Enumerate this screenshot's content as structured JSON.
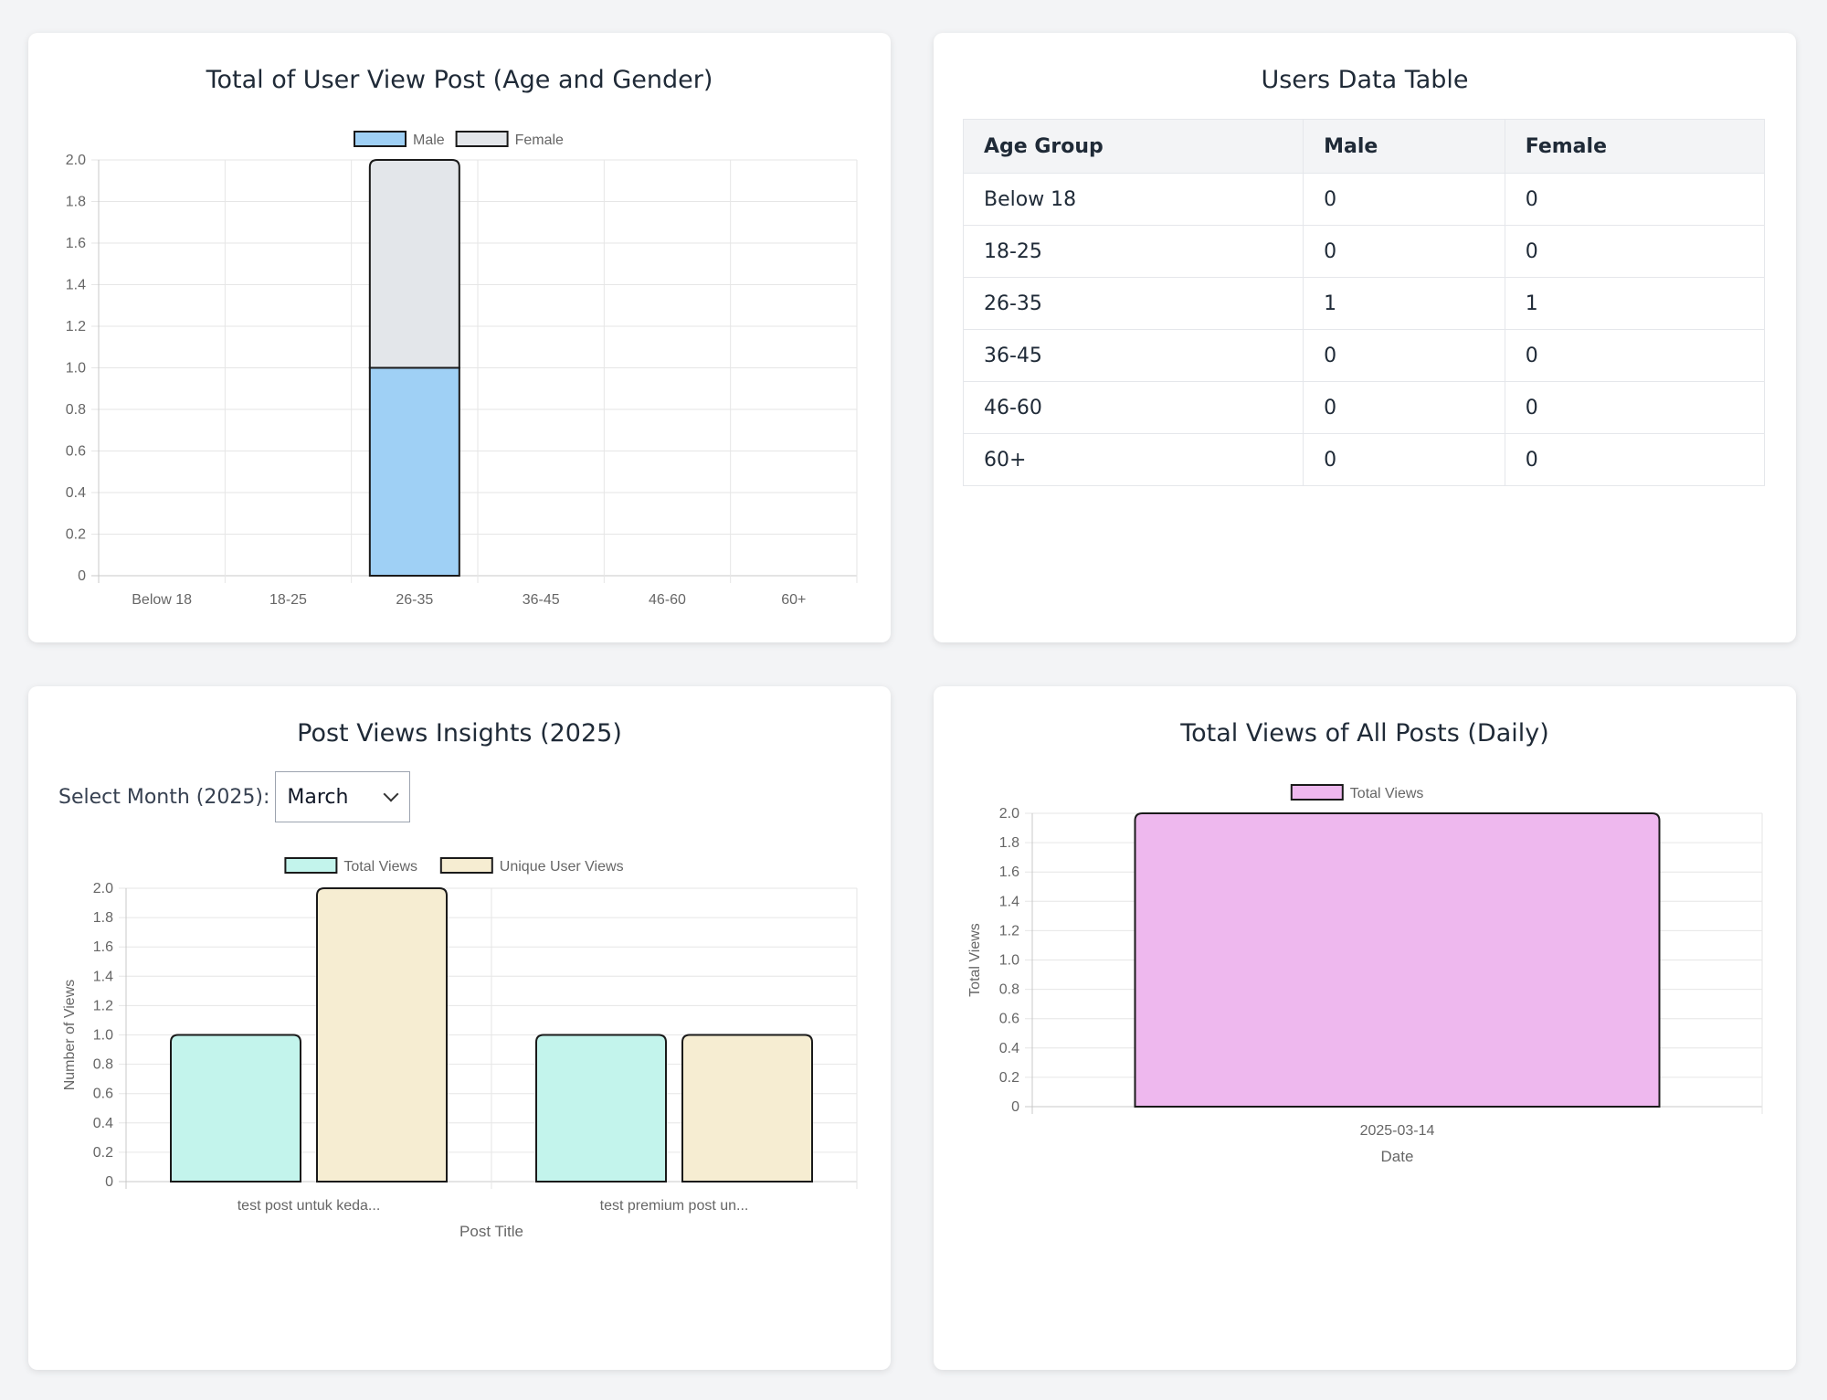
{
  "cards": {
    "age_chart_title": "Total of User View Post (Age and Gender)",
    "table_title": "Users Data Table",
    "post_chart_title": "Post Views Insights (2025)",
    "daily_chart_title": "Total Views of All Posts (Daily)"
  },
  "month_select": {
    "label": "Select Month (2025):",
    "value": "March"
  },
  "users_table": {
    "headers": [
      "Age Group",
      "Male",
      "Female"
    ],
    "rows": [
      [
        "Below 18",
        "0",
        "0"
      ],
      [
        "18-25",
        "0",
        "0"
      ],
      [
        "26-35",
        "1",
        "1"
      ],
      [
        "36-45",
        "0",
        "0"
      ],
      [
        "46-60",
        "0",
        "0"
      ],
      [
        "60+",
        "0",
        "0"
      ]
    ]
  },
  "colors": {
    "male": "#9fd0f5",
    "female": "#e3e6ea",
    "total_views": "#c3f4ec",
    "unique_views": "#f6edd2",
    "daily_total": "#eeb8ee"
  },
  "chart_data": [
    {
      "type": "bar",
      "stacked": true,
      "categories": [
        "Below 18",
        "18-25",
        "26-35",
        "36-45",
        "46-60",
        "60+"
      ],
      "series": [
        {
          "name": "Male",
          "values": [
            0,
            0,
            1,
            0,
            0,
            0
          ]
        },
        {
          "name": "Female",
          "values": [
            0,
            0,
            1,
            0,
            0,
            0
          ]
        }
      ],
      "ylim": [
        0,
        2
      ],
      "yticks": [
        "0",
        "0.2",
        "0.4",
        "0.6",
        "0.8",
        "1.0",
        "1.2",
        "1.4",
        "1.6",
        "1.8",
        "2.0"
      ],
      "grid": true,
      "legend": "top"
    },
    {
      "type": "bar",
      "categories": [
        "test post untuk keda...",
        "test premium post un..."
      ],
      "series": [
        {
          "name": "Total Views",
          "values": [
            1,
            1
          ]
        },
        {
          "name": "Unique User Views",
          "values": [
            2,
            1
          ]
        }
      ],
      "xlabel": "Post Title",
      "ylabel": "Number of Views",
      "ylim": [
        0,
        2
      ],
      "yticks": [
        "0",
        "0.2",
        "0.4",
        "0.6",
        "0.8",
        "1.0",
        "1.2",
        "1.4",
        "1.6",
        "1.8",
        "2.0"
      ],
      "grid": true,
      "legend": "top"
    },
    {
      "type": "bar",
      "categories": [
        "2025-03-14"
      ],
      "series": [
        {
          "name": "Total Views",
          "values": [
            2
          ]
        }
      ],
      "xlabel": "Date",
      "ylabel": "Total Views",
      "ylim": [
        0,
        2
      ],
      "yticks": [
        "0",
        "0.2",
        "0.4",
        "0.6",
        "0.8",
        "1.0",
        "1.2",
        "1.4",
        "1.6",
        "1.8",
        "2.0"
      ],
      "grid": true,
      "legend": "top"
    }
  ]
}
